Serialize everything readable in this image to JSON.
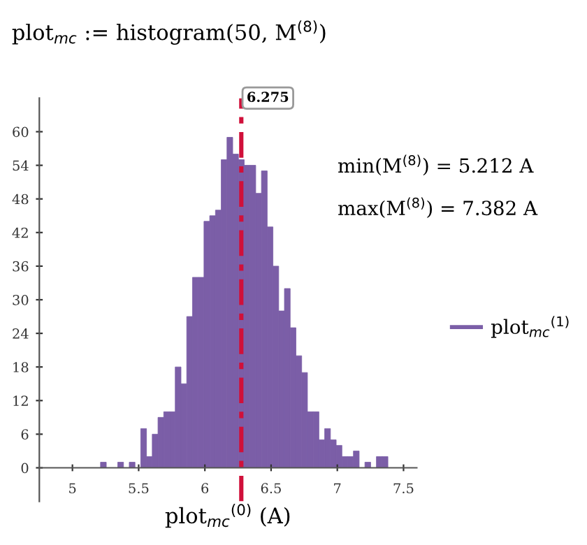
{
  "chart_data": {
    "type": "histogram",
    "title": "plot$_{mc}$ := histogram(50, M$^{(8)}$)",
    "xlabel": "plot$_{mc}$$^{(0)}$ (A)",
    "bins": [
      5.212,
      5.2554,
      5.2988,
      5.3422,
      5.3856,
      5.429,
      5.4724,
      5.5158,
      5.5592,
      5.6026,
      5.646,
      5.6894,
      5.7328,
      5.7762,
      5.8196,
      5.863,
      5.9064,
      5.9498,
      5.9932,
      6.0366,
      6.08,
      6.1234,
      6.1668,
      6.2102,
      6.2536,
      6.297,
      6.3404,
      6.3838,
      6.4272,
      6.4706,
      6.514,
      6.5574,
      6.6008,
      6.6442,
      6.6876,
      6.731,
      6.7744,
      6.8178,
      6.8612,
      6.9046,
      6.948,
      6.9914,
      7.0348,
      7.0782,
      7.1216,
      7.165,
      7.2084,
      7.2518,
      7.2952,
      7.3386,
      7.382
    ],
    "series": [
      {
        "name": "plot$_{mc}$$^{(1)}$",
        "color": "#7b5ea7",
        "values": [
          1,
          0,
          0,
          1,
          0,
          1,
          0,
          7,
          2,
          6,
          9,
          10,
          10,
          18,
          15,
          27,
          34,
          34,
          44,
          45,
          46,
          55,
          59,
          56,
          55,
          54,
          54,
          49,
          53,
          43,
          36,
          28,
          32,
          25,
          20,
          17,
          10,
          10,
          5,
          7,
          5,
          4,
          2,
          2,
          3,
          0,
          1,
          0,
          2,
          2
        ]
      }
    ],
    "xlim": [
      4.75,
      7.6
    ],
    "ylim": [
      -6,
      66
    ],
    "xticks": [
      5,
      5.5,
      6,
      6.5,
      7,
      7.5
    ],
    "yticks": [
      0,
      6,
      12,
      18,
      24,
      30,
      36,
      42,
      48,
      54,
      60
    ],
    "ref_lines": [
      {
        "axis": "x",
        "value": 6.275,
        "label": "6.275",
        "color": "#d0103a",
        "line_style": "dashed"
      }
    ],
    "annotations": [
      "min(M$^{(8)}$) = 5.212 A",
      "max(M$^{(8)}$) = 7.382 A"
    ],
    "legend": "right",
    "grid": false
  }
}
